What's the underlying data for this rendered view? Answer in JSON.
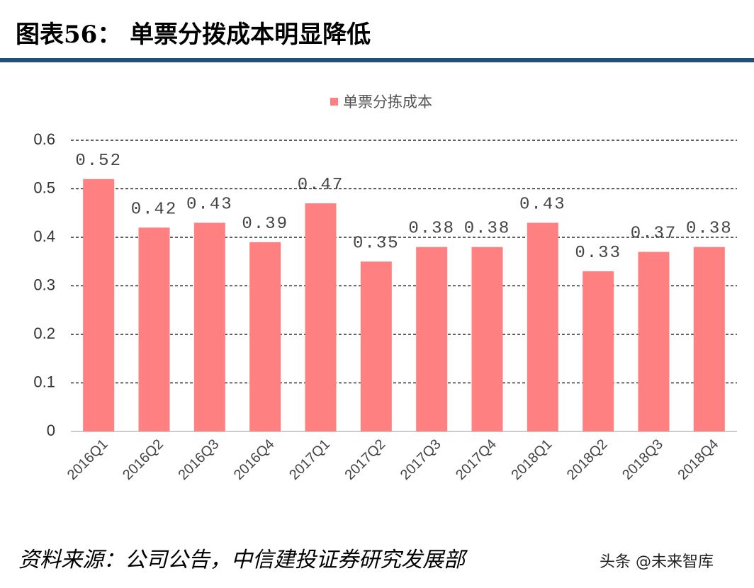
{
  "chart_data": {
    "type": "bar",
    "title": "图表56：  单票分拨成本明显降低",
    "categories": [
      "2016Q1",
      "2016Q2",
      "2016Q3",
      "2016Q4",
      "2017Q1",
      "2017Q2",
      "2017Q3",
      "2017Q4",
      "2018Q1",
      "2018Q2",
      "2018Q3",
      "2018Q4"
    ],
    "series": [
      {
        "name": "单票分拣成本",
        "color": "#ff8080",
        "values": [
          0.52,
          0.42,
          0.43,
          0.39,
          0.47,
          0.35,
          0.38,
          0.38,
          0.43,
          0.33,
          0.37,
          0.38
        ]
      }
    ],
    "ylim": [
      0,
      0.6
    ],
    "yticks": [
      0,
      0.1,
      0.2,
      0.3,
      0.4,
      0.5,
      0.6
    ],
    "grid": true,
    "legend": "top",
    "source": "资料来源：公司公告，中信建投证券研究发展部",
    "watermark": "头条 @未来智库"
  }
}
